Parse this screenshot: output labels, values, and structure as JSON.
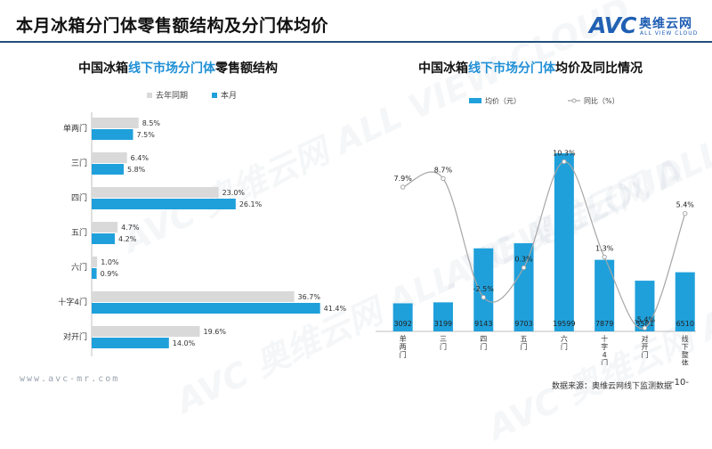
{
  "slide": {
    "title": "本月冰箱分门体零售额结构及分门体均价",
    "logo_text": "AVC",
    "logo_cn": "奥维云网",
    "logo_en": "ALL VIEW CLOUD",
    "watermark": "AVC 奥维云网 ALL VIEW CLOUD",
    "footer_url": "www.avc-mr.com",
    "source": "数据来源：奥维云网线下监测数据",
    "page": "-10-",
    "colors": {
      "blue": "#1fa0db",
      "gray": "#d9d9d9",
      "line": "#a6a6a6",
      "rule": "#1f4e79"
    }
  },
  "chart_data": [
    {
      "type": "bar",
      "orientation": "horizontal",
      "title_parts": [
        "中国冰箱",
        "线下市场分门体",
        "零售额结构"
      ],
      "categories": [
        "单两门",
        "三门",
        "四门",
        "五门",
        "六门",
        "十字4门",
        "对开门"
      ],
      "series": [
        {
          "name": "去年同期",
          "values": [
            8.5,
            6.4,
            23.0,
            4.7,
            1.0,
            36.7,
            19.6
          ],
          "labels": [
            "8.5%",
            "6.4%",
            "23.0%",
            "4.7%",
            "1.0%",
            "36.7%",
            "19.6%"
          ],
          "color": "#d9d9d9"
        },
        {
          "name": "本月",
          "values": [
            7.5,
            5.8,
            26.1,
            4.2,
            0.9,
            41.4,
            14.0
          ],
          "labels": [
            "7.5%",
            "5.8%",
            "26.1%",
            "4.2%",
            "0.9%",
            "41.4%",
            "14.0%"
          ],
          "color": "#1fa0db"
        }
      ],
      "unit": "%",
      "legend": "top-left"
    },
    {
      "type": "bar+line",
      "title_parts": [
        "中国冰箱",
        "线下市场分门体",
        "均价及同比情况"
      ],
      "categories": [
        "单两门",
        "三门",
        "四门",
        "五门",
        "六门",
        "十字4门",
        "对开门",
        "线下整体"
      ],
      "bar_series": {
        "name": "均价（元）",
        "values": [
          3092,
          3199,
          9143,
          9703,
          19599,
          7879,
          5581,
          6510
        ],
        "color": "#1fa0db"
      },
      "line_series": {
        "name": "同比（%）",
        "values": [
          7.9,
          8.7,
          -2.5,
          0.3,
          10.3,
          1.3,
          -5.4,
          5.4
        ],
        "labels": [
          "7.9%",
          "8.7%",
          "-2.5%",
          "0.3%",
          "10.3%",
          "1.3%",
          "-5.4%",
          "5.4%"
        ],
        "color": "#a6a6a6"
      },
      "legend": "top"
    }
  ]
}
